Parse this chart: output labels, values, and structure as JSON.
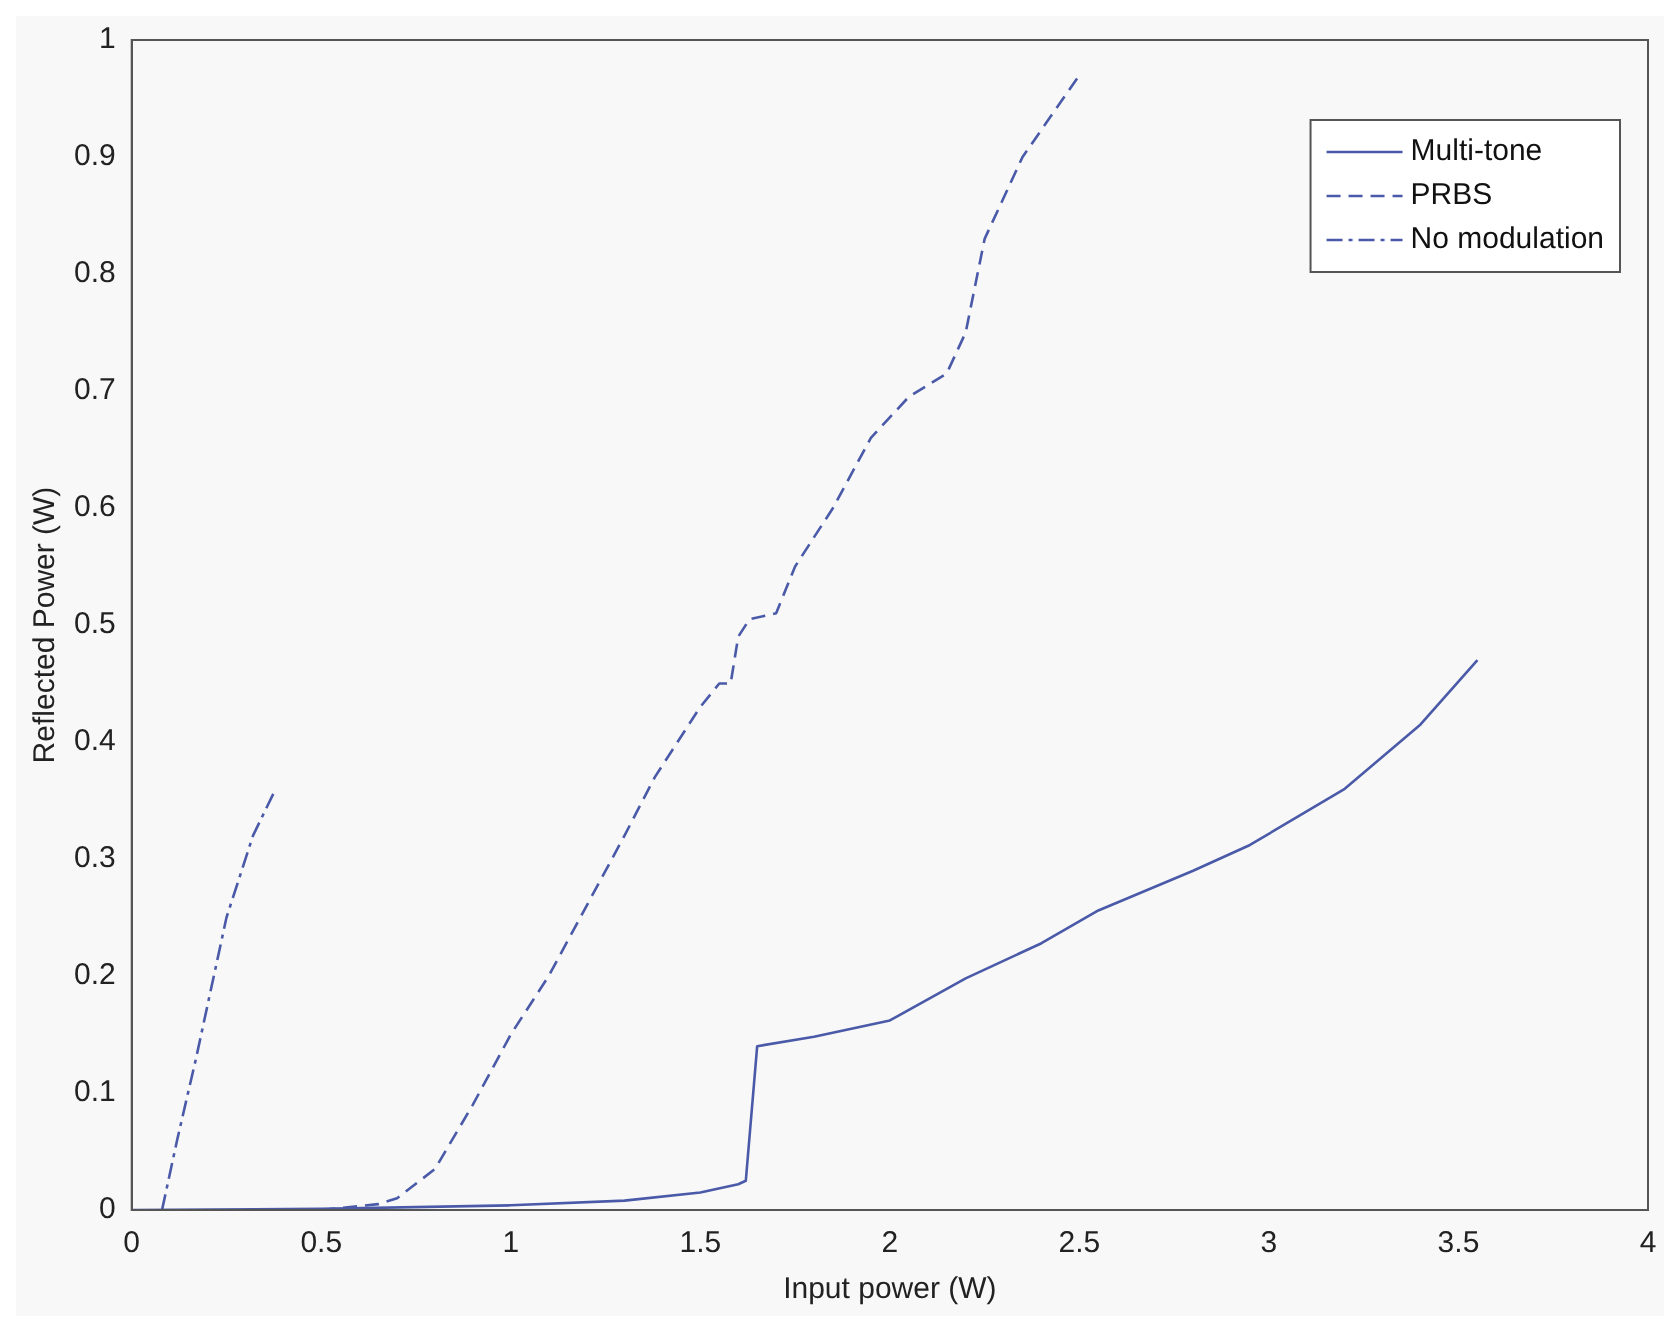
{
  "chart_data": {
    "type": "line",
    "xlabel": "Input power (W)",
    "ylabel": "Reflected Power (W)",
    "xlim": [
      0,
      4
    ],
    "xticks": [
      0,
      0.5,
      1,
      1.5,
      2,
      2.5,
      3,
      3.5,
      4
    ],
    "ylim": [
      0,
      1
    ],
    "yticks": [
      0,
      0.1,
      0.2,
      0.3,
      0.4,
      0.5,
      0.6,
      0.7,
      0.8,
      0.9,
      1
    ],
    "grid": false,
    "legend": "top right",
    "marker": "none",
    "series": [
      {
        "name": "Multi-tone",
        "color": "#4a5aa8",
        "line_style": "solid",
        "x": [
          0,
          0.5,
          1,
          1.3,
          1.5,
          1.6,
          1.62,
          1.65,
          1.8,
          2,
          2.2,
          2.4,
          2.55,
          2.8,
          2.95,
          3.2,
          3.4,
          3.55
        ],
        "values": [
          0,
          0.001,
          0.004,
          0.008,
          0.015,
          0.022,
          0.025,
          0.14,
          0.148,
          0.162,
          0.198,
          0.228,
          0.256,
          0.29,
          0.312,
          0.36,
          0.415,
          0.47
        ]
      },
      {
        "name": "PRBS",
        "color": "#4a5aa8",
        "line_style": "dashed",
        "x": [
          0.5,
          0.65,
          0.7,
          0.8,
          0.9,
          1,
          1.1,
          1.2,
          1.3,
          1.38,
          1.5,
          1.55,
          1.58,
          1.6,
          1.63,
          1.7,
          1.75,
          1.85,
          1.95,
          2.05,
          2.15,
          2.2,
          2.25,
          2.35,
          2.5
        ],
        "values": [
          0,
          0.005,
          0.01,
          0.035,
          0.09,
          0.15,
          0.2,
          0.26,
          0.32,
          0.37,
          0.43,
          0.45,
          0.45,
          0.49,
          0.505,
          0.51,
          0.55,
          0.6,
          0.66,
          0.695,
          0.715,
          0.75,
          0.83,
          0.9,
          0.97
        ]
      },
      {
        "name": "No modulation",
        "color": "#4a5aa8",
        "line_style": "dotted",
        "x": [
          0.08,
          0.12,
          0.17,
          0.25,
          0.32,
          0.38
        ],
        "values": [
          0,
          0.06,
          0.13,
          0.25,
          0.32,
          0.36
        ]
      }
    ]
  }
}
